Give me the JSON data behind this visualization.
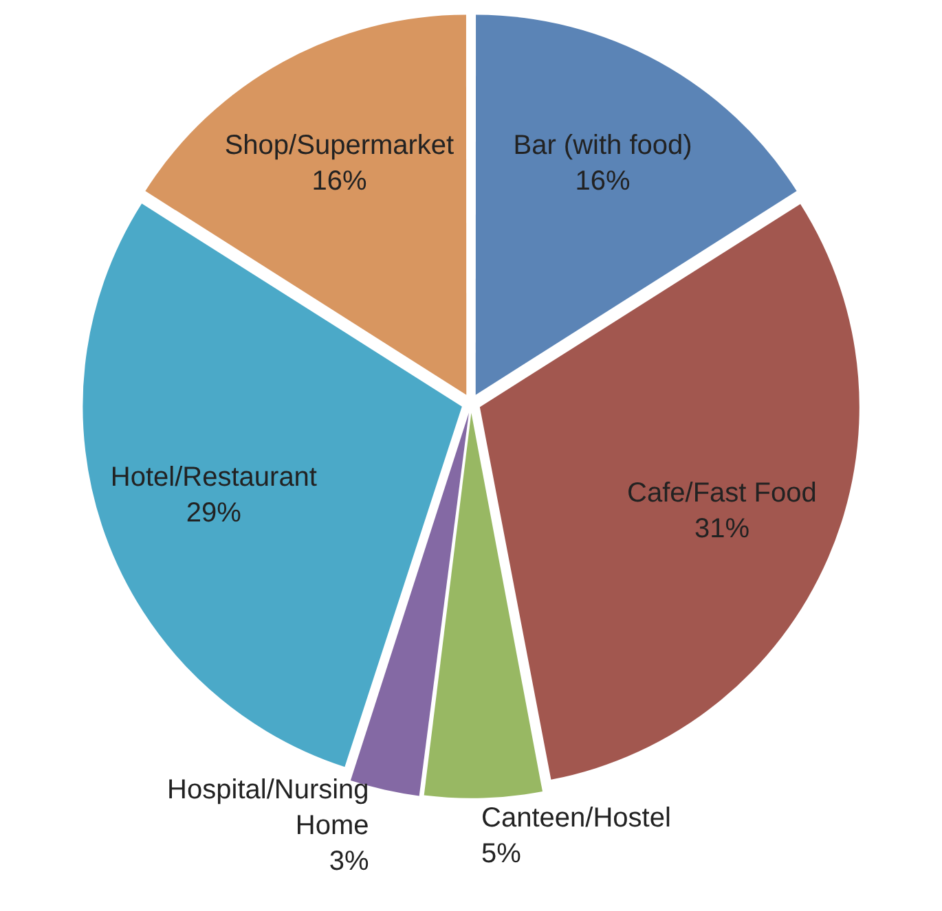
{
  "chart_data": {
    "type": "pie",
    "categories": [
      "Bar (with food)",
      "Cafe/Fast Food",
      "Canteen/Hostel",
      "Hospital/Nursing Home",
      "Hotel/Restaurant",
      "Shop/Supermarket"
    ],
    "values": [
      16,
      31,
      5,
      3,
      29,
      16
    ],
    "value_labels": [
      "16%",
      "31%",
      "5%",
      "3%",
      "29%",
      "16%"
    ],
    "colors": [
      "#5b84b6",
      "#a2574f",
      "#98b863",
      "#8469a4",
      "#4ba9c8",
      "#d89660"
    ],
    "legend": false
  }
}
